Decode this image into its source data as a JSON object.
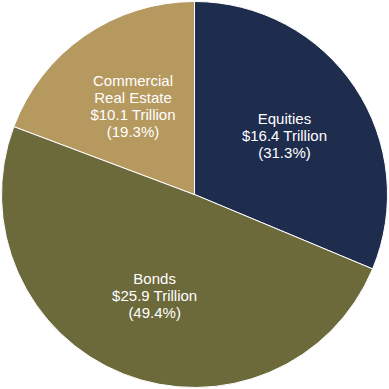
{
  "chart_data": {
    "type": "pie",
    "categories": [
      "Equities",
      "Bonds",
      "Commercial Real Estate"
    ],
    "values": [
      16.4,
      25.9,
      10.1
    ],
    "value_labels": [
      "$16.4 Trillion",
      "$25.9 Trillion",
      "$10.1 Trillion"
    ],
    "percentages": [
      31.3,
      49.4,
      19.3
    ],
    "percentage_labels": [
      "(31.3%)",
      "(49.4%)",
      "(19.3%)"
    ],
    "colors": [
      "#1e2c4e",
      "#6c6a3b",
      "#b6995f"
    ],
    "data_labels": true
  }
}
